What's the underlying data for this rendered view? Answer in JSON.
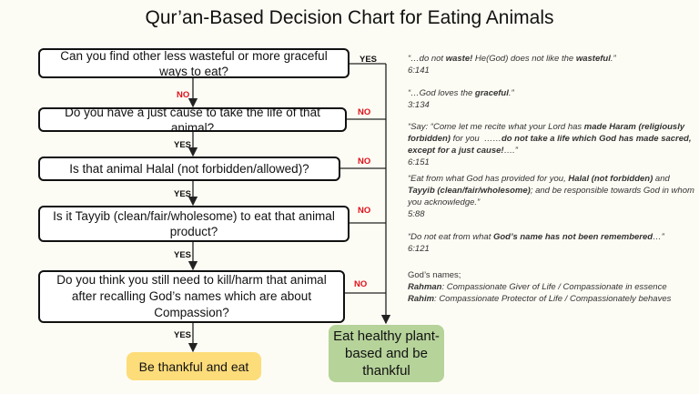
{
  "title": "Qur’an-Based Decision Chart for Eating Animals",
  "questions": [
    "Can you find other less wasteful or more graceful ways to eat?",
    "Do you have a just cause to take the life of that animal?",
    "Is that animal Halal (not forbidden/allowed)?",
    "Is it Tayyib (clean/fair/wholesome) to eat that animal product?",
    "Do you think you still need to kill/harm that animal after recalling God’s names which are about Compassion?"
  ],
  "labels": {
    "yes": "YES",
    "no": "NO"
  },
  "outcomes": {
    "eat": "Be thankful and eat",
    "plant": "Eat healthy plant-based and be thankful"
  },
  "quotes": [
    {
      "text_html": "“…do not <b>waste!</b> He(God) does not like the <b>wasteful</b>.”",
      "ref": "6:141"
    },
    {
      "text_html": "“…God loves the <b>graceful</b>.”",
      "ref": "3:134"
    },
    {
      "text_html": "“Say: “Come let me recite what your Lord has <b>made Haram (religiously forbidden)</b> for you &nbsp;……<b>do not take a life which God has made sacred, except for a just cause!</b>….”",
      "ref": "6:151"
    },
    {
      "text_html": "“Eat from what God has provided for you, <b>Halal (not forbidden)</b> and <b>Tayyib (clean/fair/wholesome)</b>; and be responsible towards God in whom you acknowledge.”",
      "ref": "5:88"
    },
    {
      "text_html": "“Do not eat from what <b>God’s name has not been remembered</b>…”",
      "ref": "6:121"
    }
  ],
  "names": {
    "heading": "God’s names;",
    "rahman_term": "Rahman",
    "rahman_desc": ": Compassionate Giver of Life / Compassionate in essence",
    "rahim_term": "Rahim",
    "rahim_desc": ": Compassionate Protector of Life / Compassionately behaves"
  }
}
